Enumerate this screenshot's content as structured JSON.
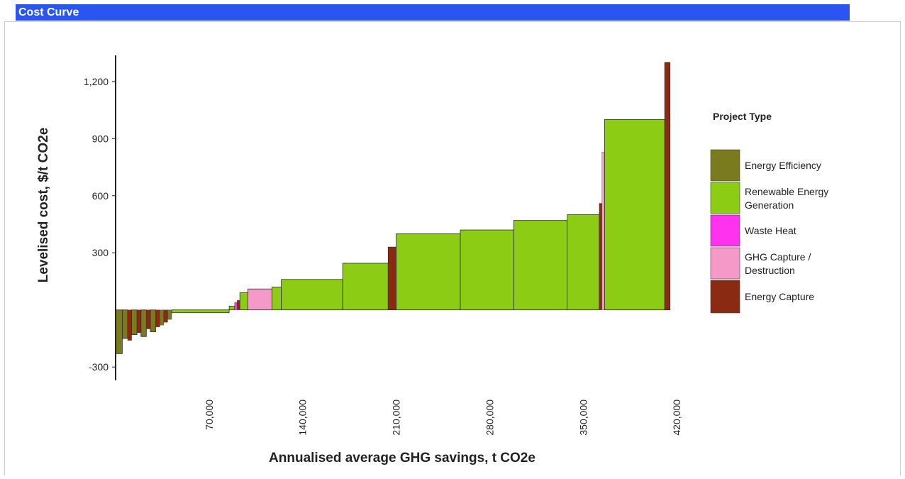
{
  "header": {
    "title": "Cost Curve"
  },
  "chart_data": {
    "type": "bar",
    "variant": "marginal-abatement-cost-curve",
    "xlabel": "Annualised average GHG savings, t CO2e",
    "ylabel": "Levelised cost, $/t CO2e",
    "xlim": [
      0,
      430000
    ],
    "ylim": [
      -400,
      1300
    ],
    "xticks": [
      70000,
      140000,
      210000,
      280000,
      350000,
      420000
    ],
    "xtick_labels": [
      "70,000",
      "140,000",
      "210,000",
      "280,000",
      "350,000",
      "420,000"
    ],
    "yticks": [
      -300,
      300,
      600,
      900,
      1200
    ],
    "ytick_labels": [
      "-300",
      "300",
      "600",
      "900",
      "1,200"
    ],
    "grid": false,
    "legend": {
      "title": "Project Type",
      "placement": "right",
      "entries": [
        {
          "label": "Energy Efficiency",
          "color": "#7a7a1e"
        },
        {
          "label": "Renewable Energy Generation",
          "color": "#8ccc14"
        },
        {
          "label": "Waste Heat",
          "color": "#ff33ee"
        },
        {
          "label": "GHG Capture / Destruction",
          "color": "#f59ac8"
        },
        {
          "label": "Energy Capture",
          "color": "#8a2a12"
        }
      ]
    },
    "bars": [
      {
        "x0": 0,
        "x1": 5000,
        "value": -230,
        "type": "Energy Efficiency"
      },
      {
        "x0": 5000,
        "x1": 9000,
        "value": -150,
        "type": "Energy Efficiency"
      },
      {
        "x0": 9000,
        "x1": 12000,
        "value": -160,
        "type": "Energy Capture"
      },
      {
        "x0": 12000,
        "x1": 16000,
        "value": -130,
        "type": "Energy Efficiency"
      },
      {
        "x0": 16000,
        "x1": 19000,
        "value": -120,
        "type": "Energy Capture"
      },
      {
        "x0": 19000,
        "x1": 23000,
        "value": -140,
        "type": "Energy Efficiency"
      },
      {
        "x0": 23000,
        "x1": 26000,
        "value": -100,
        "type": "Energy Capture"
      },
      {
        "x0": 26000,
        "x1": 30000,
        "value": -115,
        "type": "Energy Efficiency"
      },
      {
        "x0": 30000,
        "x1": 33000,
        "value": -90,
        "type": "Energy Capture"
      },
      {
        "x0": 33000,
        "x1": 36000,
        "value": -80,
        "type": "Energy Efficiency"
      },
      {
        "x0": 36000,
        "x1": 39000,
        "value": -65,
        "type": "Energy Capture"
      },
      {
        "x0": 39000,
        "x1": 42000,
        "value": -50,
        "type": "Energy Efficiency"
      },
      {
        "x0": 42000,
        "x1": 85000,
        "value": -15,
        "type": "Renewable Energy Generation"
      },
      {
        "x0": 85000,
        "x1": 89000,
        "value": 20,
        "type": "Renewable Energy Generation"
      },
      {
        "x0": 89000,
        "x1": 91000,
        "value": 40,
        "type": "Waste Heat"
      },
      {
        "x0": 91000,
        "x1": 93000,
        "value": 50,
        "type": "Energy Capture"
      },
      {
        "x0": 93000,
        "x1": 99000,
        "value": 90,
        "type": "Renewable Energy Generation"
      },
      {
        "x0": 99000,
        "x1": 117000,
        "value": 110,
        "type": "GHG Capture / Destruction"
      },
      {
        "x0": 117000,
        "x1": 124000,
        "value": 120,
        "type": "Renewable Energy Generation"
      },
      {
        "x0": 124000,
        "x1": 170000,
        "value": 160,
        "type": "Renewable Energy Generation"
      },
      {
        "x0": 170000,
        "x1": 204000,
        "value": 245,
        "type": "Renewable Energy Generation"
      },
      {
        "x0": 204000,
        "x1": 210000,
        "value": 330,
        "type": "Energy Capture"
      },
      {
        "x0": 210000,
        "x1": 258000,
        "value": 400,
        "type": "Renewable Energy Generation"
      },
      {
        "x0": 258000,
        "x1": 298000,
        "value": 420,
        "type": "Renewable Energy Generation"
      },
      {
        "x0": 298000,
        "x1": 338000,
        "value": 470,
        "type": "Renewable Energy Generation"
      },
      {
        "x0": 338000,
        "x1": 362000,
        "value": 500,
        "type": "Renewable Energy Generation"
      },
      {
        "x0": 362000,
        "x1": 364000,
        "value": 560,
        "type": "Energy Capture"
      },
      {
        "x0": 364000,
        "x1": 366000,
        "value": 830,
        "type": "GHG Capture / Destruction"
      },
      {
        "x0": 366000,
        "x1": 411000,
        "value": 1000,
        "type": "Renewable Energy Generation"
      },
      {
        "x0": 411000,
        "x1": 415000,
        "value": 1300,
        "type": "Energy Capture"
      }
    ]
  }
}
